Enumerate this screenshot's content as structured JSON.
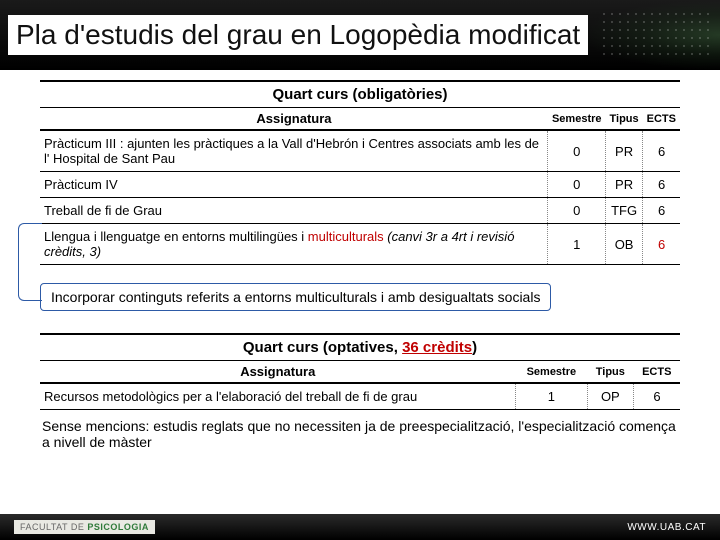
{
  "title": "Pla d'estudis del grau en Logopèdia modificat",
  "section1": {
    "heading": "Quart curs (obligatòries)",
    "cols": {
      "assig": "Assignatura",
      "sem": "Semestre",
      "tip": "Tipus",
      "ects": "ECTS"
    },
    "rows": [
      {
        "assig": "Pràcticum III : ajunten les pràctiques a la Vall d'Hebrón i Centres associats amb les de l' Hospital de Sant Pau",
        "sem": "0",
        "tip": "PR",
        "ects": "6"
      },
      {
        "assig": "Pràcticum IV",
        "sem": "0",
        "tip": "PR",
        "ects": "6"
      },
      {
        "assig": "Treball de fi de Grau",
        "sem": "0",
        "tip": "TFG",
        "ects": "6"
      }
    ],
    "row4": {
      "pre": "Llengua i llenguatge en entorns multilingües i ",
      "mc": "multiculturals",
      "post": " (canvi 3r a 4rt i revisió crèdits, 3)",
      "sem": "1",
      "tip": "OB",
      "ects": "6"
    }
  },
  "callout": "Incorporar continguts referits a entorns multiculturals i amb desigualtats socials",
  "section2": {
    "heading_pre": "Quart curs (optatives, ",
    "heading_cred": "36 crèdits",
    "heading_post": ")",
    "cols": {
      "assig": "Assignatura",
      "sem": "Semestre",
      "tip": "Tipus",
      "ects": "ECTS"
    },
    "rows": [
      {
        "assig": "Recursos metodològics per a l'elaboració del treball de fi de grau",
        "sem": "1",
        "tip": "OP",
        "ects": "6"
      }
    ]
  },
  "note2": "Sense mencions: estudis reglats que no necessiten ja de preespecialització, l'especialització comença a nivell de màster",
  "footer": {
    "facultat_pre": "FACULTAT DE ",
    "facultat_b": "PSICOLOGIA",
    "url": "WWW.UAB.CAT"
  }
}
